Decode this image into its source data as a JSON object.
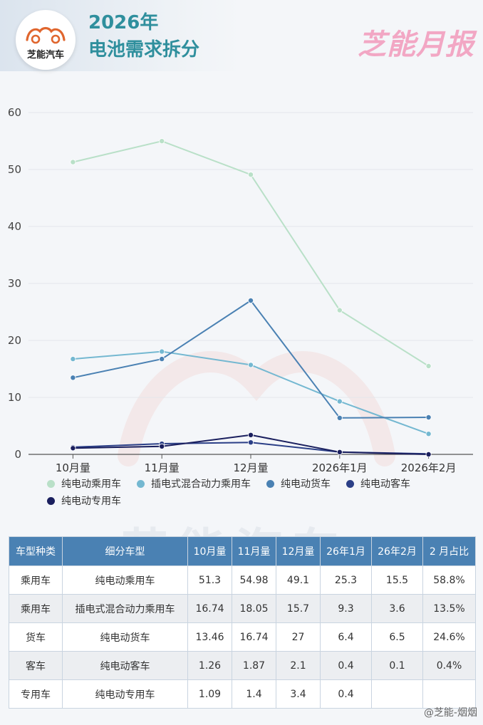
{
  "header": {
    "logo_text": "芝能汽车",
    "title_line1": "2026年",
    "title_line2": "电池需求拆分",
    "brand": "芝能月报"
  },
  "colors": {
    "title": "#2f8f9d",
    "table_header": "#4a81b3",
    "series": [
      "#b9e0c8",
      "#74b8d1",
      "#4a81b3",
      "#2b3f87",
      "#1a1f5e"
    ]
  },
  "watermark": "芝能汽车",
  "chart_data": {
    "type": "line",
    "categories": [
      "10月量",
      "11月量",
      "12月量",
      "2026年1月",
      "2026年2月"
    ],
    "series": [
      {
        "name": "纯电动乘用车",
        "values": [
          51.3,
          54.98,
          49.1,
          25.3,
          15.5
        ]
      },
      {
        "name": "插电式混合动力乘用车",
        "values": [
          16.74,
          18.05,
          15.7,
          9.3,
          3.6
        ]
      },
      {
        "name": "纯电动货车",
        "values": [
          13.46,
          16.74,
          27,
          6.4,
          6.5
        ]
      },
      {
        "name": "纯电动客车",
        "values": [
          1.26,
          1.87,
          2.1,
          0.4,
          0.1
        ]
      },
      {
        "name": "纯电动专用车",
        "values": [
          1.09,
          1.4,
          3.4,
          0.4,
          0
        ]
      }
    ],
    "yticks": [
      "0",
      "10",
      "20",
      "30",
      "40",
      "50",
      "60"
    ],
    "ylim": [
      0,
      60
    ],
    "grid": true,
    "legend_position": "bottom"
  },
  "table": {
    "headers": [
      "车型种类",
      "细分车型",
      "10月量",
      "11月量",
      "12月量",
      "26年1月",
      "26年2月",
      "2 月占比"
    ],
    "rows": [
      [
        "乘用车",
        "纯电动乘用车",
        "51.3",
        "54.98",
        "49.1",
        "25.3",
        "15.5",
        "58.8%"
      ],
      [
        "乘用车",
        "插电式混合动力乘用车",
        "16.74",
        "18.05",
        "15.7",
        "9.3",
        "3.6",
        "13.5%"
      ],
      [
        "货车",
        "纯电动货车",
        "13.46",
        "16.74",
        "27",
        "6.4",
        "6.5",
        "24.6%"
      ],
      [
        "客车",
        "纯电动客车",
        "1.26",
        "1.87",
        "2.1",
        "0.4",
        "0.1",
        "0.4%"
      ],
      [
        "专用车",
        "纯电动专用车",
        "1.09",
        "1.4",
        "3.4",
        "0.4",
        "",
        ""
      ]
    ]
  },
  "footer": {
    "weibo_handle": "@芝能-烟烟"
  }
}
